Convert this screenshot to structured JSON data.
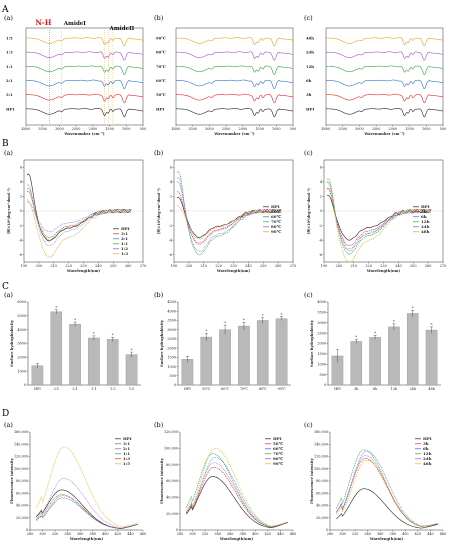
{
  "figure": {
    "sections": [
      {
        "letter": "A",
        "panels": [
          {
            "sub": "(a)",
            "type": "line",
            "xlabel": "Wavenumber (cm⁻¹)",
            "xticks": [
              "4000",
              "3500",
              "3000",
              "2500",
              "2000",
              "1500",
              "1000",
              "500"
            ],
            "xlim": [
              4000,
              500
            ],
            "annotations": [
              {
                "text": "N-H",
                "color": "#e8141c"
              },
              {
                "text": "AmideI",
                "color": "#111111"
              },
              {
                "text": "AmideII",
                "color": "#111111"
              }
            ],
            "series": [
              {
                "name": "1:5",
                "color": "#e0a41c"
              },
              {
                "name": "1:3",
                "color": "#a34fd1"
              },
              {
                "name": "1:1",
                "color": "#2aa54a"
              },
              {
                "name": "2:1",
                "color": "#2a6fcf"
              },
              {
                "name": "3:1",
                "color": "#e8262a"
              },
              {
                "name": "HPI",
                "color": "#222222"
              }
            ]
          },
          {
            "sub": "(b)",
            "type": "line",
            "xlabel": "Wavenumber (cm⁻¹)",
            "xticks": [
              "4000",
              "3500",
              "3000",
              "2500",
              "2000",
              "1500",
              "1000",
              "500"
            ],
            "xlim": [
              4000,
              500
            ],
            "series": [
              {
                "name": "90℃",
                "color": "#e0a41c"
              },
              {
                "name": "80℃",
                "color": "#a34fd1"
              },
              {
                "name": "70℃",
                "color": "#2aa54a"
              },
              {
                "name": "60℃",
                "color": "#2a6fcf"
              },
              {
                "name": "50℃",
                "color": "#e8262a"
              },
              {
                "name": "HPI",
                "color": "#222222"
              }
            ]
          },
          {
            "sub": "(c)",
            "type": "line",
            "xlabel": "Wavenumber (cm⁻¹)",
            "xticks": [
              "4000",
              "3500",
              "3000",
              "2500",
              "2000",
              "1500",
              "1000",
              "500"
            ],
            "xlim": [
              4000,
              500
            ],
            "series": [
              {
                "name": "48h",
                "color": "#e0a41c"
              },
              {
                "name": "24h",
                "color": "#a34fd1"
              },
              {
                "name": "12h",
                "color": "#2aa54a"
              },
              {
                "name": "6h",
                "color": "#2a6fcf"
              },
              {
                "name": "3h",
                "color": "#e8262a"
              },
              {
                "name": "HPI",
                "color": "#222222"
              }
            ]
          }
        ]
      },
      {
        "letter": "B",
        "panels": [
          {
            "sub": "(a)",
            "type": "line",
            "xlabel": "Wavelength(nm)",
            "ylabel": "[θ]×10³(deg·cm²·dmol⁻¹)",
            "xticks": [
              "190",
              "200",
              "210",
              "220",
              "230",
              "240",
              "250",
              "260",
              "270"
            ],
            "yticks": [
              "6",
              "4",
              "2",
              "0",
              "-2",
              "-4",
              "-6"
            ],
            "xlim": [
              190,
              270
            ],
            "ylim": [
              -7,
              7
            ],
            "legend": [
              "HPI",
              "3:1",
              "2:1",
              "1:1",
              "1:2",
              "1:3"
            ],
            "colors": [
              "#222222",
              "#e8262a",
              "#2a6fcf",
              "#2aa54a",
              "#a34fd1",
              "#e0a41c"
            ]
          },
          {
            "sub": "(b)",
            "type": "line",
            "xlabel": "Wavelength(nm)",
            "ylabel": "[θ]×10³(deg·cm²·dmol⁻¹)",
            "xticks": [
              "190",
              "200",
              "210",
              "220",
              "230",
              "240",
              "250",
              "260",
              "270"
            ],
            "yticks": [
              "6",
              "4",
              "2",
              "0",
              "-2",
              "-4",
              "-6"
            ],
            "xlim": [
              190,
              270
            ],
            "ylim": [
              -7,
              7
            ],
            "legend": [
              "HPI",
              "50℃",
              "60℃",
              "70℃",
              "80℃",
              "90℃"
            ],
            "colors": [
              "#222222",
              "#e8262a",
              "#2a6fcf",
              "#2aa54a",
              "#a34fd1",
              "#e0a41c"
            ]
          },
          {
            "sub": "(c)",
            "type": "line",
            "xlabel": "Wavelength(nm)",
            "ylabel": "[θ]×10³(deg·cm²·dmol⁻¹)",
            "xticks": [
              "190",
              "200",
              "210",
              "220",
              "230",
              "240",
              "250",
              "260",
              "270"
            ],
            "yticks": [
              "6",
              "4",
              "2",
              "0",
              "-2",
              "-4",
              "-6"
            ],
            "xlim": [
              190,
              270
            ],
            "ylim": [
              -7,
              7
            ],
            "legend": [
              "HPI",
              "3h",
              "6h",
              "12h",
              "24h",
              "48h"
            ],
            "colors": [
              "#222222",
              "#e8262a",
              "#2a6fcf",
              "#2aa54a",
              "#a34fd1",
              "#e0a41c"
            ]
          }
        ]
      },
      {
        "letter": "C",
        "panels": [
          {
            "sub": "(a)",
            "type": "bar",
            "ylabel": "Surface hydrophobicity",
            "categories": [
              "HPI",
              "3:1",
              "2:1",
              "1:1",
              "1:3",
              "1:5"
            ],
            "values": [
              1400,
              5300,
              4400,
              3400,
              3300,
              2200
            ],
            "errors": [
              150,
              150,
              150,
              150,
              150,
              180
            ],
            "yticks": [
              "0",
              "1000",
              "2000",
              "3000",
              "4000",
              "5000",
              "6000"
            ],
            "ylim": [
              0,
              6000
            ]
          },
          {
            "sub": "(b)",
            "type": "bar",
            "ylabel": "Surface hydrophobicity",
            "categories": [
              "HPI",
              "50℃",
              "60℃",
              "70℃",
              "80℃",
              "90℃"
            ],
            "values": [
              1400,
              2600,
              3000,
              3200,
              3500,
              3600
            ],
            "errors": [
              150,
              200,
              250,
              200,
              150,
              100
            ],
            "yticks": [
              "0",
              "500",
              "1000",
              "1500",
              "2000",
              "2500",
              "3000",
              "3500",
              "4000",
              "4500"
            ],
            "ylim": [
              0,
              4500
            ]
          },
          {
            "sub": "(c)",
            "type": "bar",
            "ylabel": "Surface hydrophobicity",
            "categories": [
              "HPI",
              "3h",
              "6h",
              "12h",
              "24h",
              "48h"
            ],
            "values": [
              1400,
              2100,
              2300,
              2800,
              3450,
              2650
            ],
            "errors": [
              300,
              100,
              100,
              150,
              150,
              150
            ],
            "yticks": [
              "0",
              "500",
              "1000",
              "1500",
              "2000",
              "2500",
              "3000",
              "3500",
              "4000"
            ],
            "ylim": [
              0,
              4000
            ]
          }
        ]
      },
      {
        "letter": "D",
        "panels": [
          {
            "sub": "(a)",
            "type": "line",
            "xlabel": "Wavelength(nm)",
            "ylabel": "Fluorescence intensity",
            "xticks": [
              "280",
              "300",
              "320",
              "340",
              "360",
              "380",
              "400",
              "420",
              "440",
              "460"
            ],
            "yticks": [
              "0",
              "20,000",
              "40,000",
              "60,000",
              "80,000",
              "100,000",
              "120,000",
              "140,000",
              "160,000"
            ],
            "xlim": [
              280,
              460
            ],
            "ylim": [
              0,
              160000
            ],
            "legend": [
              "HPI",
              "3:1",
              "2:1",
              "1:1",
              "1:3",
              "1:5"
            ],
            "colors": [
              "#222222",
              "#2a6fcf",
              "#a34fd1",
              "#2aa54a",
              "#e8262a",
              "#d4c21c"
            ],
            "peaks": [
              70000,
              56000,
              90000,
              62000,
              60000,
              145000
            ]
          },
          {
            "sub": "(b)",
            "type": "line",
            "xlabel": "Wavelength(nm)",
            "ylabel": "Fluorescence intensity",
            "xticks": [
              "280",
              "300",
              "320",
              "340",
              "360",
              "380",
              "400",
              "420",
              "440",
              "460"
            ],
            "yticks": [
              "0",
              "20,000",
              "40,000",
              "60,000",
              "80,000",
              "100,000",
              "120,000"
            ],
            "xlim": [
              280,
              460
            ],
            "ylim": [
              0,
              120000
            ],
            "legend": [
              "HPI",
              "50℃",
              "60℃",
              "70℃",
              "80℃",
              "90℃"
            ],
            "colors": [
              "#222222",
              "#e8262a",
              "#2a6fcf",
              "#2aa54a",
              "#a34fd1",
              "#d4c21c"
            ],
            "peaks": [
              70000,
              82000,
              95000,
              100000,
              88000,
              107000
            ]
          },
          {
            "sub": "(c)",
            "type": "line",
            "xlabel": "Wavelength(nm)",
            "ylabel": "Fluorescence intensity",
            "xticks": [
              "280",
              "300",
              "320",
              "340",
              "360",
              "380",
              "400",
              "420",
              "440",
              "460"
            ],
            "yticks": [
              "0",
              "20,000",
              "40,000",
              "60,000",
              "80,000",
              "100,000",
              "120,000",
              "140,000",
              "160,000"
            ],
            "xlim": [
              280,
              460
            ],
            "ylim": [
              0,
              160000
            ],
            "legend": [
              "HPI",
              "3h",
              "6h",
              "12h",
              "24h",
              "48h"
            ],
            "colors": [
              "#222222",
              "#e8262a",
              "#2a6fcf",
              "#2aa54a",
              "#a34fd1",
              "#d4c21c"
            ],
            "peaks": [
              72000,
              125000,
              138000,
              140000,
              130000,
              122000
            ]
          }
        ]
      }
    ]
  },
  "chart_data": [
    {
      "type": "line",
      "title": "",
      "xlabel": "Wavenumber (cm⁻¹)",
      "xlim": [
        4000,
        500
      ],
      "series_names": [
        "1:5",
        "1:3",
        "1:1",
        "2:1",
        "3:1",
        "HPI"
      ]
    },
    {
      "type": "line",
      "title": "",
      "xlabel": "Wavenumber (cm⁻¹)",
      "xlim": [
        4000,
        500
      ],
      "series_names": [
        "90℃",
        "80℃",
        "70℃",
        "60℃",
        "50℃",
        "HPI"
      ]
    },
    {
      "type": "line",
      "title": "",
      "xlabel": "Wavenumber (cm⁻¹)",
      "xlim": [
        4000,
        500
      ],
      "series_names": [
        "48h",
        "24h",
        "12h",
        "6h",
        "3h",
        "HPI"
      ]
    },
    {
      "type": "line",
      "title": "",
      "xlabel": "Wavelength(nm)",
      "ylabel": "[θ]×10³(deg·cm²·dmol⁻¹)",
      "xlim": [
        190,
        270
      ],
      "ylim": [
        -7,
        7
      ],
      "series_names": [
        "HPI",
        "3:1",
        "2:1",
        "1:1",
        "1:2",
        "1:3"
      ]
    },
    {
      "type": "line",
      "title": "",
      "xlabel": "Wavelength(nm)",
      "ylabel": "[θ]×10³(deg·cm²·dmol⁻¹)",
      "xlim": [
        190,
        270
      ],
      "ylim": [
        -7,
        7
      ],
      "series_names": [
        "HPI",
        "50℃",
        "60℃",
        "70℃",
        "80℃",
        "90℃"
      ]
    },
    {
      "type": "line",
      "title": "",
      "xlabel": "Wavelength(nm)",
      "ylabel": "[θ]×10³(deg·cm²·dmol⁻¹)",
      "xlim": [
        190,
        270
      ],
      "ylim": [
        -7,
        7
      ],
      "series_names": [
        "HPI",
        "3h",
        "6h",
        "12h",
        "24h",
        "48h"
      ]
    },
    {
      "type": "bar",
      "title": "",
      "ylabel": "Surface hydrophobicity",
      "categories": [
        "HPI",
        "3:1",
        "2:1",
        "1:1",
        "1:3",
        "1:5"
      ],
      "values": [
        1400,
        5300,
        4400,
        3400,
        3300,
        2200
      ],
      "ylim": [
        0,
        6000
      ]
    },
    {
      "type": "bar",
      "title": "",
      "ylabel": "Surface hydrophobicity",
      "categories": [
        "HPI",
        "50℃",
        "60℃",
        "70℃",
        "80℃",
        "90℃"
      ],
      "values": [
        1400,
        2600,
        3000,
        3200,
        3500,
        3600
      ],
      "ylim": [
        0,
        4500
      ]
    },
    {
      "type": "bar",
      "title": "",
      "ylabel": "Surface hydrophobicity",
      "categories": [
        "HPI",
        "3h",
        "6h",
        "12h",
        "24h",
        "48h"
      ],
      "values": [
        1400,
        2100,
        2300,
        2800,
        3450,
        2650
      ],
      "ylim": [
        0,
        4000
      ]
    },
    {
      "type": "line",
      "title": "",
      "xlabel": "Wavelength(nm)",
      "ylabel": "Fluorescence intensity",
      "xlim": [
        280,
        460
      ],
      "ylim": [
        0,
        160000
      ],
      "series": [
        {
          "name": "HPI",
          "peak": 70000
        },
        {
          "name": "3:1",
          "peak": 56000
        },
        {
          "name": "2:1",
          "peak": 90000
        },
        {
          "name": "1:1",
          "peak": 62000
        },
        {
          "name": "1:3",
          "peak": 60000
        },
        {
          "name": "1:5",
          "peak": 145000
        }
      ]
    },
    {
      "type": "line",
      "title": "",
      "xlabel": "Wavelength(nm)",
      "ylabel": "Fluorescence intensity",
      "xlim": [
        280,
        460
      ],
      "ylim": [
        0,
        120000
      ],
      "series": [
        {
          "name": "HPI",
          "peak": 70000
        },
        {
          "name": "50℃",
          "peak": 82000
        },
        {
          "name": "60℃",
          "peak": 95000
        },
        {
          "name": "70℃",
          "peak": 100000
        },
        {
          "name": "80℃",
          "peak": 88000
        },
        {
          "name": "90℃",
          "peak": 107000
        }
      ]
    },
    {
      "type": "line",
      "title": "",
      "xlabel": "Wavelength(nm)",
      "ylabel": "Fluorescence intensity",
      "xlim": [
        280,
        460
      ],
      "ylim": [
        0,
        160000
      ],
      "series": [
        {
          "name": "HPI",
          "peak": 72000
        },
        {
          "name": "3h",
          "peak": 125000
        },
        {
          "name": "6h",
          "peak": 138000
        },
        {
          "name": "12h",
          "peak": 140000
        },
        {
          "name": "24h",
          "peak": 130000
        },
        {
          "name": "48h",
          "peak": 122000
        }
      ]
    }
  ]
}
